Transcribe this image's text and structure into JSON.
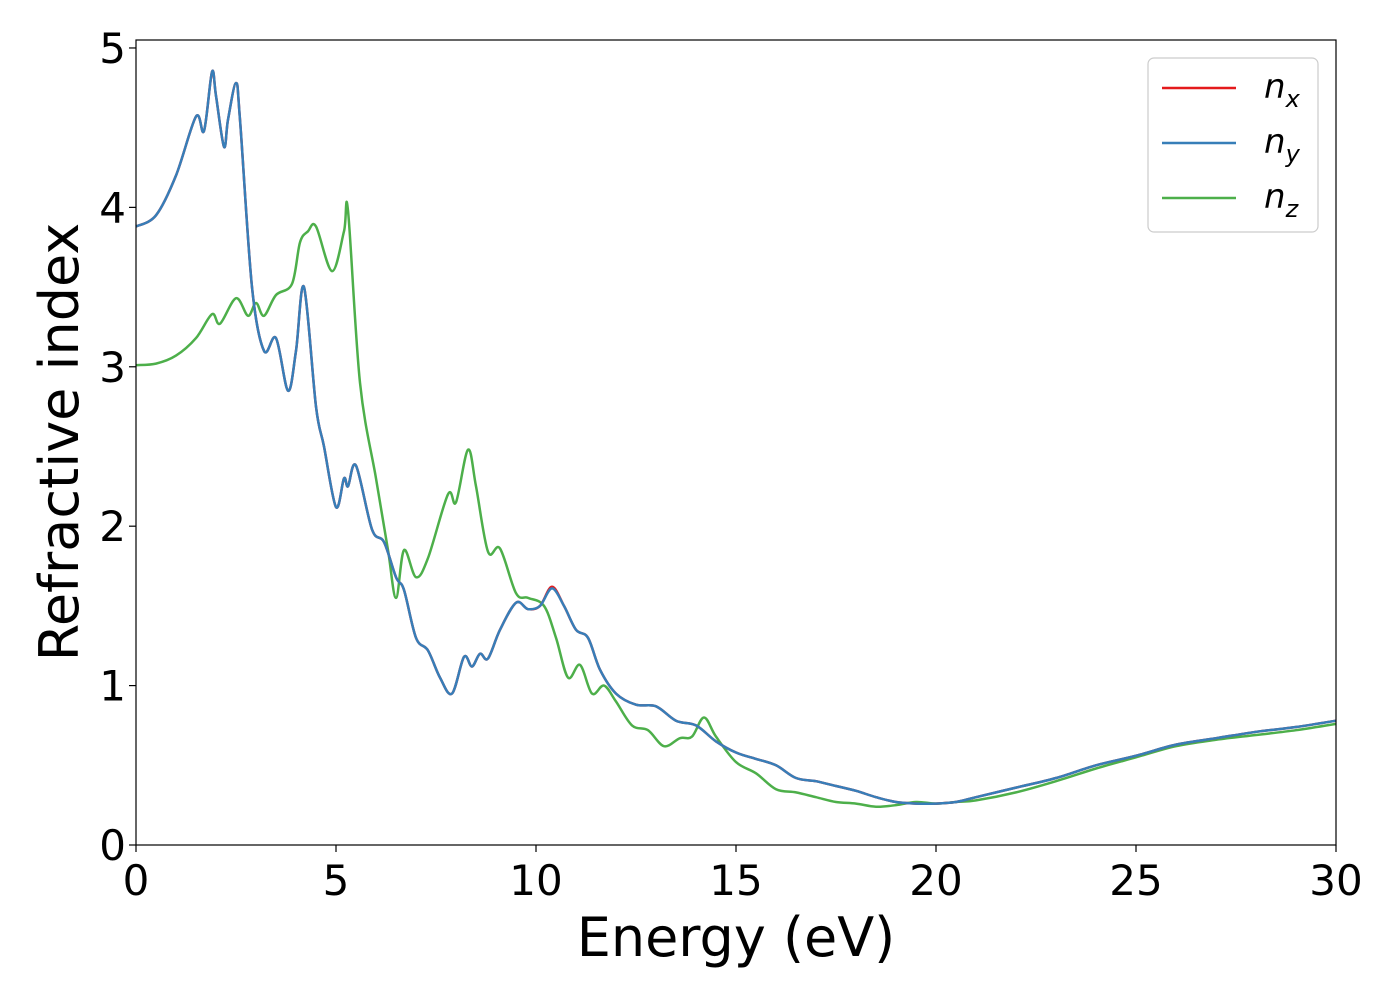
{
  "chart_data": {
    "type": "line",
    "xlabel": "Energy (eV)",
    "ylabel": "Refractive index",
    "xlim": [
      0,
      30
    ],
    "ylim": [
      0,
      5.05
    ],
    "xticks": [
      "0",
      "5",
      "10",
      "15",
      "20",
      "25",
      "30"
    ],
    "yticks": [
      "0",
      "1",
      "2",
      "3",
      "4",
      "5"
    ],
    "grid": false,
    "legend_position": "top-right",
    "series": [
      {
        "name": "n",
        "subscript": "x",
        "color": "#e41a1c",
        "x": [
          0,
          0.5,
          1.0,
          1.5,
          1.7,
          1.9,
          2.0,
          2.2,
          2.3,
          2.5,
          2.6,
          2.9,
          3.2,
          3.5,
          3.8,
          4.0,
          4.2,
          4.5,
          4.7,
          5.0,
          5.2,
          5.3,
          5.5,
          5.9,
          6.2,
          6.5,
          6.7,
          7.0,
          7.3,
          7.6,
          7.9,
          8.2,
          8.4,
          8.6,
          8.8,
          9.1,
          9.5,
          9.8,
          10.1,
          10.4,
          10.7,
          11.0,
          11.3,
          11.6,
          12.0,
          12.5,
          13.0,
          13.5,
          14.0,
          14.5,
          15.0,
          15.5,
          16.0,
          16.5,
          17.0,
          17.5,
          18.0,
          18.5,
          19.0,
          19.5,
          20.0,
          20.5,
          21.0,
          22.0,
          23.0,
          24.0,
          25.0,
          26.0,
          27.0,
          28.0,
          29.0,
          30.0
        ],
        "values": [
          3.88,
          3.95,
          4.2,
          4.57,
          4.48,
          4.85,
          4.7,
          4.38,
          4.55,
          4.78,
          4.55,
          3.5,
          3.1,
          3.18,
          2.85,
          3.1,
          3.5,
          2.75,
          2.5,
          2.12,
          2.3,
          2.25,
          2.38,
          1.98,
          1.9,
          1.68,
          1.6,
          1.3,
          1.22,
          1.05,
          0.95,
          1.18,
          1.12,
          1.2,
          1.17,
          1.35,
          1.52,
          1.48,
          1.5,
          1.62,
          1.5,
          1.35,
          1.3,
          1.1,
          0.95,
          0.88,
          0.87,
          0.78,
          0.75,
          0.65,
          0.58,
          0.54,
          0.5,
          0.42,
          0.4,
          0.37,
          0.34,
          0.3,
          0.27,
          0.26,
          0.26,
          0.27,
          0.3,
          0.36,
          0.42,
          0.5,
          0.56,
          0.63,
          0.67,
          0.71,
          0.74,
          0.78
        ]
      },
      {
        "name": "n",
        "subscript": "y",
        "color": "#377eb8",
        "x": [
          0,
          0.5,
          1.0,
          1.5,
          1.7,
          1.9,
          2.0,
          2.2,
          2.3,
          2.5,
          2.6,
          2.9,
          3.2,
          3.5,
          3.8,
          4.0,
          4.2,
          4.5,
          4.7,
          5.0,
          5.2,
          5.3,
          5.5,
          5.9,
          6.2,
          6.5,
          6.7,
          7.0,
          7.3,
          7.6,
          7.9,
          8.2,
          8.4,
          8.6,
          8.8,
          9.1,
          9.5,
          9.8,
          10.1,
          10.4,
          10.7,
          11.0,
          11.3,
          11.6,
          12.0,
          12.5,
          13.0,
          13.5,
          14.0,
          14.5,
          15.0,
          15.5,
          16.0,
          16.5,
          17.0,
          17.5,
          18.0,
          18.5,
          19.0,
          19.5,
          20.0,
          20.5,
          21.0,
          22.0,
          23.0,
          24.0,
          25.0,
          26.0,
          27.0,
          28.0,
          29.0,
          30.0
        ],
        "values": [
          3.88,
          3.95,
          4.2,
          4.57,
          4.48,
          4.85,
          4.7,
          4.38,
          4.55,
          4.78,
          4.55,
          3.5,
          3.1,
          3.18,
          2.85,
          3.1,
          3.5,
          2.75,
          2.5,
          2.12,
          2.3,
          2.25,
          2.38,
          1.98,
          1.9,
          1.68,
          1.6,
          1.3,
          1.22,
          1.05,
          0.95,
          1.18,
          1.12,
          1.2,
          1.17,
          1.35,
          1.52,
          1.48,
          1.5,
          1.61,
          1.5,
          1.35,
          1.3,
          1.1,
          0.95,
          0.88,
          0.87,
          0.78,
          0.75,
          0.65,
          0.58,
          0.54,
          0.5,
          0.42,
          0.4,
          0.37,
          0.34,
          0.3,
          0.27,
          0.26,
          0.26,
          0.27,
          0.3,
          0.36,
          0.42,
          0.5,
          0.56,
          0.63,
          0.67,
          0.71,
          0.74,
          0.78
        ]
      },
      {
        "name": "n",
        "subscript": "z",
        "color": "#4daf4a",
        "x": [
          0,
          0.5,
          1.0,
          1.5,
          1.9,
          2.1,
          2.5,
          2.8,
          3.0,
          3.2,
          3.5,
          3.9,
          4.1,
          4.3,
          4.5,
          4.9,
          5.2,
          5.3,
          5.6,
          6.0,
          6.3,
          6.5,
          6.7,
          7.0,
          7.3,
          7.8,
          8.0,
          8.3,
          8.5,
          8.8,
          9.1,
          9.5,
          9.8,
          10.2,
          10.5,
          10.8,
          11.1,
          11.4,
          11.7,
          12.0,
          12.4,
          12.8,
          13.2,
          13.6,
          13.9,
          14.2,
          14.5,
          15.0,
          15.5,
          16.0,
          16.5,
          17.0,
          17.5,
          18.0,
          18.5,
          19.0,
          19.5,
          20.0,
          20.5,
          21.0,
          22.0,
          23.0,
          24.0,
          25.0,
          26.0,
          27.0,
          28.0,
          29.0,
          30.0
        ],
        "values": [
          3.01,
          3.02,
          3.07,
          3.18,
          3.33,
          3.27,
          3.43,
          3.32,
          3.4,
          3.32,
          3.45,
          3.52,
          3.78,
          3.85,
          3.88,
          3.6,
          3.85,
          3.98,
          2.9,
          2.3,
          1.85,
          1.55,
          1.85,
          1.68,
          1.8,
          2.2,
          2.15,
          2.48,
          2.25,
          1.84,
          1.86,
          1.58,
          1.55,
          1.5,
          1.3,
          1.05,
          1.13,
          0.95,
          1.0,
          0.9,
          0.75,
          0.72,
          0.62,
          0.67,
          0.68,
          0.8,
          0.68,
          0.52,
          0.45,
          0.35,
          0.33,
          0.3,
          0.27,
          0.26,
          0.24,
          0.25,
          0.27,
          0.26,
          0.27,
          0.28,
          0.33,
          0.4,
          0.48,
          0.55,
          0.62,
          0.66,
          0.69,
          0.72,
          0.76
        ]
      }
    ]
  }
}
